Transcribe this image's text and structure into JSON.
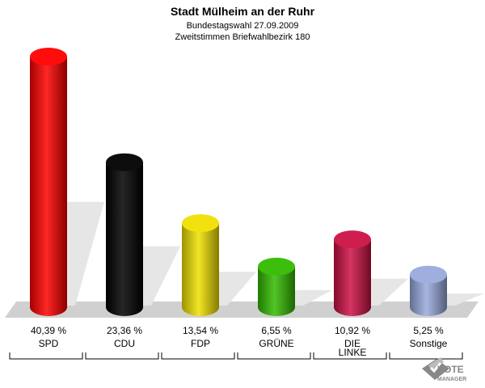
{
  "chart_data": {
    "type": "bar",
    "title": "Stadt Mülheim an der Ruhr",
    "subtitle_1": "Bundestagswahl 27.09.2009",
    "subtitle_2": "Zweitstimmen Briefwahlbezirk 180",
    "categories": [
      "SPD",
      "CDU",
      "FDP",
      "GRÜNE",
      "DIE LINKE",
      "Sonstige"
    ],
    "category_lines": [
      [
        "SPD"
      ],
      [
        "CDU"
      ],
      [
        "FDP"
      ],
      [
        "GRÜNE"
      ],
      [
        "DIE",
        "LINKE"
      ],
      [
        "Sonstige"
      ]
    ],
    "values": [
      40.39,
      23.36,
      13.54,
      6.55,
      10.92,
      5.25
    ],
    "value_labels": [
      "40,39 %",
      "23,36 %",
      "13,54 %",
      "6,55 %",
      "10,92 %",
      "5,25 %"
    ],
    "colors": [
      "#ff0000",
      "#000000",
      "#f0e000",
      "#33bb00",
      "#cc1144",
      "#99aadd"
    ],
    "ylim": [
      0,
      40.39
    ]
  },
  "logo": {
    "line1": "VOTE",
    "line2": "MANAGER"
  }
}
